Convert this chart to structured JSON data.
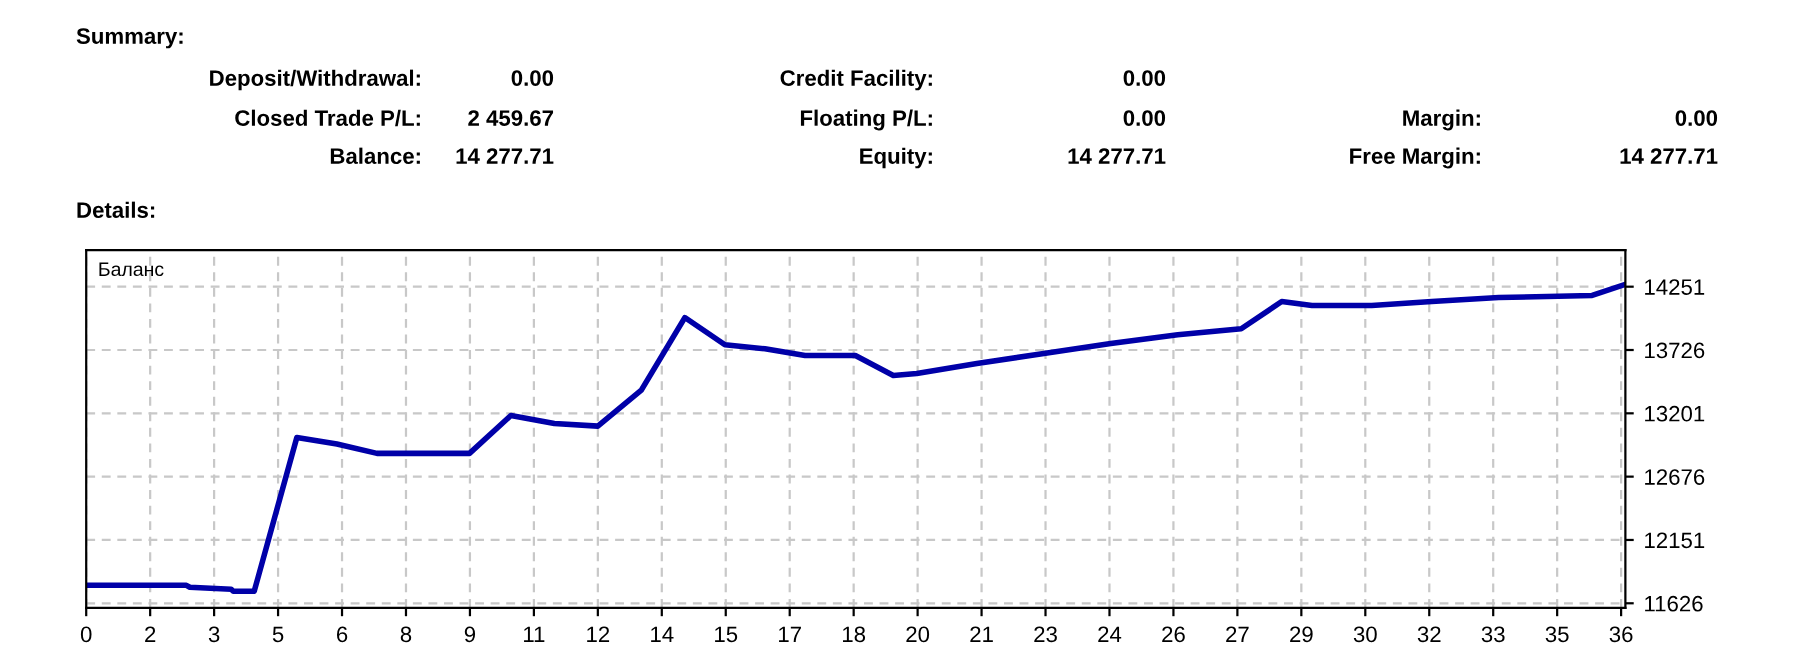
{
  "chart_data": {
    "type": "line",
    "annotations": [
      "Summary:",
      "Deposit/Withdrawal:",
      "0.00",
      "Closed Trade P/L:",
      "2 459.67",
      "Balance:",
      "14 277.71",
      "Credit Facility:",
      "0.00",
      "Floating P/L:",
      "0.00",
      "Equity:",
      "14 277.71",
      "Margin:",
      "0.00",
      "Free Margin:",
      "14 277.71",
      "Details:"
    ],
    "series": [
      {
        "name": "Баланс",
        "color": "#0000a8",
        "x": [
          0,
          2.35,
          2.43,
          3.4,
          3.45,
          3.94,
          4.94,
          5.88,
          6.82,
          8.99,
          9.96,
          10.98,
          12.0,
          13.02,
          14.04,
          14.98,
          15.92,
          16.86,
          18.04,
          18.93,
          19.48,
          20.89,
          22.46,
          24.03,
          25.6,
          27.09,
          28.04,
          28.75,
          30.15,
          31.56,
          33.13,
          35.32,
          36.1
        ],
        "values": [
          11775,
          11775,
          11759,
          11742,
          11725,
          11725,
          13001,
          12946,
          12869,
          12869,
          13183,
          13117,
          13095,
          13393,
          13995,
          13769,
          13736,
          13680,
          13680,
          13515,
          13531,
          13614,
          13697,
          13780,
          13852,
          13902,
          14128,
          14095,
          14095,
          14128,
          14161,
          14178,
          14270
        ]
      }
    ],
    "xlim": [
      0,
      36.1
    ],
    "xticks": [
      0,
      {
        "value": 1.5,
        "label": "2"
      },
      3,
      {
        "value": 4.5,
        "label": "5"
      },
      6,
      {
        "value": 7.5,
        "label": "8"
      },
      9,
      {
        "value": 10.5,
        "label": "11"
      },
      12,
      {
        "value": 13.5,
        "label": "14"
      },
      15,
      {
        "value": 16.5,
        "label": "17"
      },
      18,
      {
        "value": 19.5,
        "label": "20"
      },
      21,
      {
        "value": 22.5,
        "label": "23"
      },
      24,
      {
        "value": 25.5,
        "label": "26"
      },
      27,
      {
        "value": 28.5,
        "label": "29"
      },
      30,
      {
        "value": 31.5,
        "label": "32"
      },
      33,
      {
        "value": 34.5,
        "label": "35"
      },
      36
    ],
    "ylim": [
      11588,
      14554
    ],
    "yticks": [
      11626,
      12151,
      12676,
      13201,
      13726,
      14251
    ],
    "grid": true,
    "legend": "top left",
    "marker": "none",
    "line_style": "solid"
  }
}
